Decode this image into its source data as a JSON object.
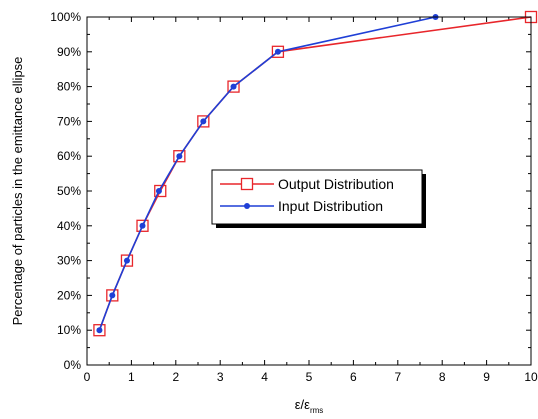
{
  "chart_data": {
    "type": "line",
    "xlabel": "ε/ε",
    "xlabel_subscript": "rms",
    "ylabel": "Percentage of particles in the emittance ellipse",
    "xlim": [
      0,
      10
    ],
    "ylim": [
      0,
      100
    ],
    "x_ticks": [
      0,
      1,
      2,
      3,
      4,
      5,
      6,
      7,
      8,
      9,
      10
    ],
    "y_ticks": [
      0,
      10,
      20,
      30,
      40,
      50,
      60,
      70,
      80,
      90,
      100
    ],
    "y_tick_labels": [
      "0%",
      "10%",
      "20%",
      "30%",
      "40%",
      "50%",
      "60%",
      "70%",
      "80%",
      "90%",
      "100%"
    ],
    "legend_position": "center-right",
    "series": [
      {
        "name": "Output Distribution",
        "color": "#e8262b",
        "marker": "open-square",
        "points": [
          [
            0.28,
            10
          ],
          [
            0.57,
            20
          ],
          [
            0.9,
            30
          ],
          [
            1.25,
            40
          ],
          [
            1.65,
            50
          ],
          [
            2.08,
            60
          ],
          [
            2.62,
            70
          ],
          [
            3.3,
            80
          ],
          [
            4.3,
            90
          ],
          [
            10,
            100
          ]
        ]
      },
      {
        "name": "Input Distribution",
        "color": "#1f3fd6",
        "marker": "filled-circle",
        "points": [
          [
            0.28,
            10
          ],
          [
            0.57,
            20
          ],
          [
            0.9,
            30
          ],
          [
            1.25,
            40
          ],
          [
            1.62,
            50
          ],
          [
            2.08,
            60
          ],
          [
            2.62,
            70
          ],
          [
            3.3,
            80
          ],
          [
            4.3,
            90
          ],
          [
            7.85,
            100
          ]
        ]
      }
    ]
  }
}
